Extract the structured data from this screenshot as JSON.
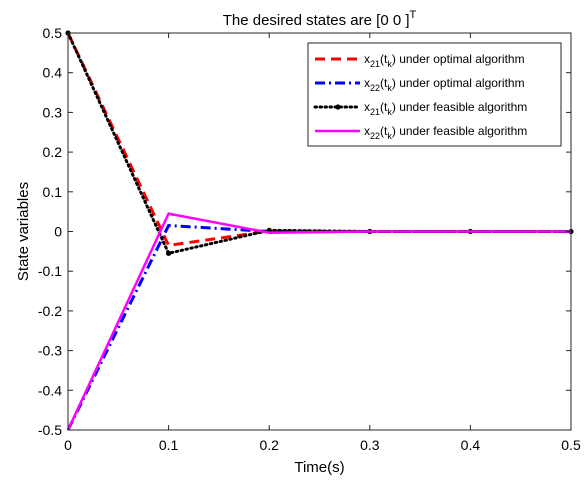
{
  "chart_data": {
    "type": "line",
    "title": {
      "text": "The desired states are [0 0 ]",
      "superscript": "T"
    },
    "xlabel": "Time(s)",
    "ylabel": "State variables",
    "xlim": [
      0,
      0.5
    ],
    "ylim": [
      -0.5,
      0.5
    ],
    "x_ticks": [
      0,
      0.1,
      0.2,
      0.3,
      0.4,
      0.5
    ],
    "x_tick_labels": [
      "0",
      "0.1",
      "0.2",
      "0.3",
      "0.4",
      "0.5"
    ],
    "y_ticks": [
      -0.5,
      -0.4,
      -0.3,
      -0.2,
      -0.1,
      0,
      0.1,
      0.2,
      0.3,
      0.4,
      0.5
    ],
    "y_tick_labels": [
      "-0.5",
      "-0.4",
      "-0.3",
      "-0.2",
      "-0.1",
      "0",
      "0.1",
      "0.2",
      "0.3",
      "0.4",
      "0.5"
    ],
    "grid": false,
    "legend_position": "top-right",
    "x": [
      0,
      0.1,
      0.2,
      0.3,
      0.4,
      0.5
    ],
    "series": [
      {
        "legend": {
          "var": "x",
          "sub": "21",
          "arg": "(t",
          "argsub": "k",
          "suffix": ") under optimal algorithm"
        },
        "color": "#ff0000",
        "dash": "dashed",
        "marker": "none",
        "values": [
          0.5,
          -0.035,
          0.001,
          0.0,
          0.0,
          0.0
        ]
      },
      {
        "legend": {
          "var": "x",
          "sub": "22",
          "arg": "(t",
          "argsub": "k",
          "suffix": ") under optimal algorithm"
        },
        "color": "#0000ff",
        "dash": "dashdot",
        "marker": "none",
        "values": [
          -0.5,
          0.015,
          0.0,
          0.0,
          0.0,
          0.0
        ]
      },
      {
        "legend": {
          "var": "x",
          "sub": "21",
          "arg": "(t",
          "argsub": "k",
          "suffix": ") under feasible algorithm"
        },
        "color": "#000000",
        "dash": "dotted",
        "marker": "dot",
        "values": [
          0.5,
          -0.055,
          0.003,
          0.0,
          0.0,
          0.0
        ]
      },
      {
        "legend": {
          "var": "x",
          "sub": "22",
          "arg": "(t",
          "argsub": "k",
          "suffix": ") under feasible algorithm"
        },
        "color": "#ff00ff",
        "dash": "solid",
        "marker": "none",
        "values": [
          -0.5,
          0.045,
          -0.003,
          0.0,
          0.0,
          0.0
        ]
      }
    ]
  }
}
